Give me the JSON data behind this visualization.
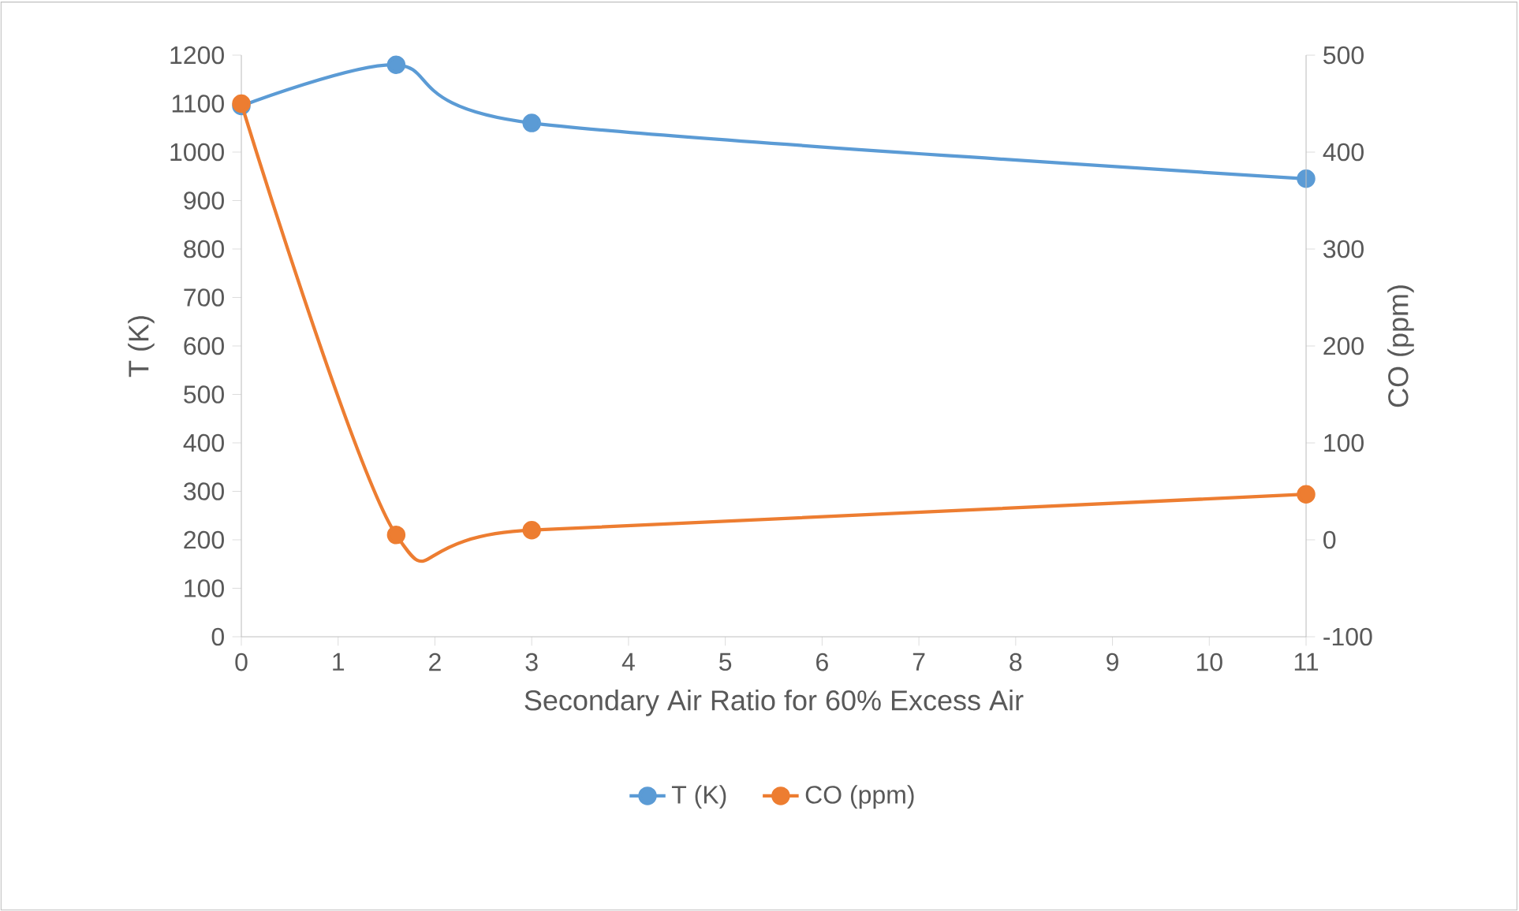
{
  "chart_data": {
    "type": "line",
    "xlabel": "Secondary Air Ratio for 60% Excess Air",
    "ylabel": "T (K)",
    "y2label": "CO (ppm)",
    "x": [
      0,
      1.6,
      3,
      11
    ],
    "series": [
      {
        "name": "T (K)",
        "color": "#5b9bd5",
        "values": [
          1095,
          1180,
          1060,
          945
        ]
      },
      {
        "name": "CO (ppm)",
        "color": "#ed7d31",
        "values": [
          450,
          5,
          10,
          47
        ],
        "axis": "y2"
      }
    ],
    "xlim": [
      0,
      11
    ],
    "xticks": [
      0,
      1,
      2,
      3,
      4,
      5,
      6,
      7,
      8,
      9,
      10,
      11
    ],
    "ylim": [
      0,
      1200
    ],
    "yticks": [
      0,
      100,
      200,
      300,
      400,
      500,
      600,
      700,
      800,
      900,
      1000,
      1100,
      1200
    ],
    "y2lim": [
      -100,
      500
    ],
    "y2ticks": [
      -100,
      0,
      100,
      200,
      300,
      400,
      500
    ],
    "grid": false,
    "legend": "bottom",
    "marker": "circle",
    "line_style": "solid"
  }
}
